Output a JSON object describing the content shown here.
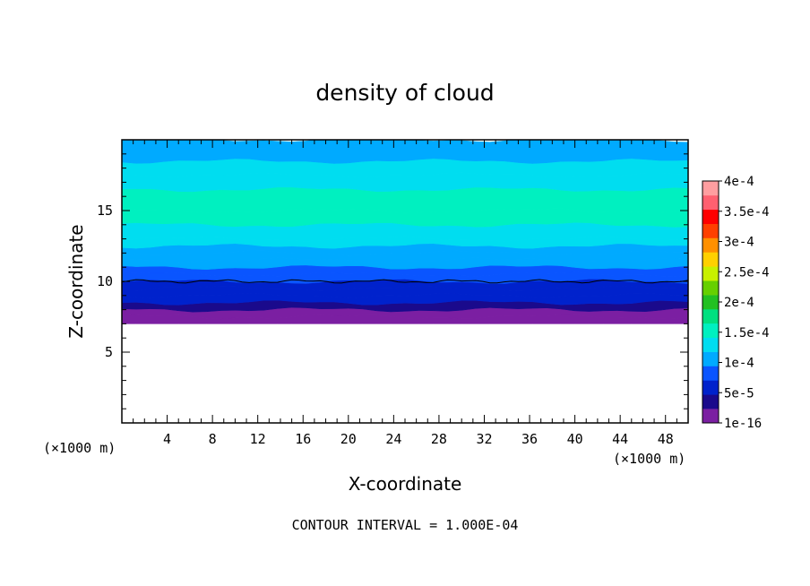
{
  "chart_data": {
    "type": "contourf",
    "title": "density of cloud",
    "xlabel": "X-coordinate",
    "ylabel": "Z-coordinate",
    "x_unit_left": "(×1000 m)",
    "x_unit_right": "(×1000 m)",
    "footer": "CONTOUR INTERVAL = 1.000E-04",
    "xlim": [
      0,
      50
    ],
    "ylim": [
      0,
      20
    ],
    "x_ticks": [
      4,
      8,
      12,
      16,
      20,
      24,
      28,
      32,
      36,
      40,
      44,
      48
    ],
    "x_tick_labels": [
      "4",
      "8",
      "12",
      "16",
      "20",
      "24",
      "28",
      "32",
      "36",
      "40",
      "44",
      "48"
    ],
    "y_ticks": [
      5,
      10,
      15
    ],
    "y_tick_labels": [
      "5",
      "10",
      "15"
    ],
    "colorbar": {
      "levels": [
        1e-16,
        2.5e-05,
        5e-05,
        7.5e-05,
        0.0001,
        0.000125,
        0.00015,
        0.000175,
        0.0002,
        0.000225,
        0.00025,
        0.000275,
        0.0003,
        0.000325,
        0.00035,
        0.000375,
        0.0004
      ],
      "colors": [
        "#7b1fa2",
        "#1a0a8c",
        "#0022cc",
        "#0a55ff",
        "#00aaff",
        "#00ddf0",
        "#00f0c0",
        "#00e080",
        "#22c022",
        "#66d000",
        "#c8f000",
        "#ffd000",
        "#ff9000",
        "#ff4000",
        "#ff0000",
        "#ff6070",
        "#ff9ea0"
      ],
      "labels": [
        "1e-16",
        "5e-5",
        "1e-4",
        "1.5e-4",
        "2e-4",
        "2.5e-4",
        "3e-4",
        "3.5e-4",
        "4e-4"
      ]
    },
    "profile": {
      "z": [
        7.0,
        7.5,
        8.0,
        8.5,
        9.0,
        9.5,
        10.0,
        10.5,
        11.0,
        11.5,
        12.0,
        12.5,
        13.0,
        14.0,
        15.0,
        16.5,
        17.5,
        18.5,
        19.5,
        20.0
      ],
      "value": [
        1e-16,
        2e-05,
        4e-05,
        5e-05,
        6e-05,
        7e-05,
        8e-05,
        9e-05,
        0.0001,
        0.00011,
        0.00012,
        0.00013,
        0.000145,
        0.000152,
        0.000155,
        0.000145,
        0.00013,
        0.00012,
        0.00011,
        0.000105
      ]
    }
  }
}
